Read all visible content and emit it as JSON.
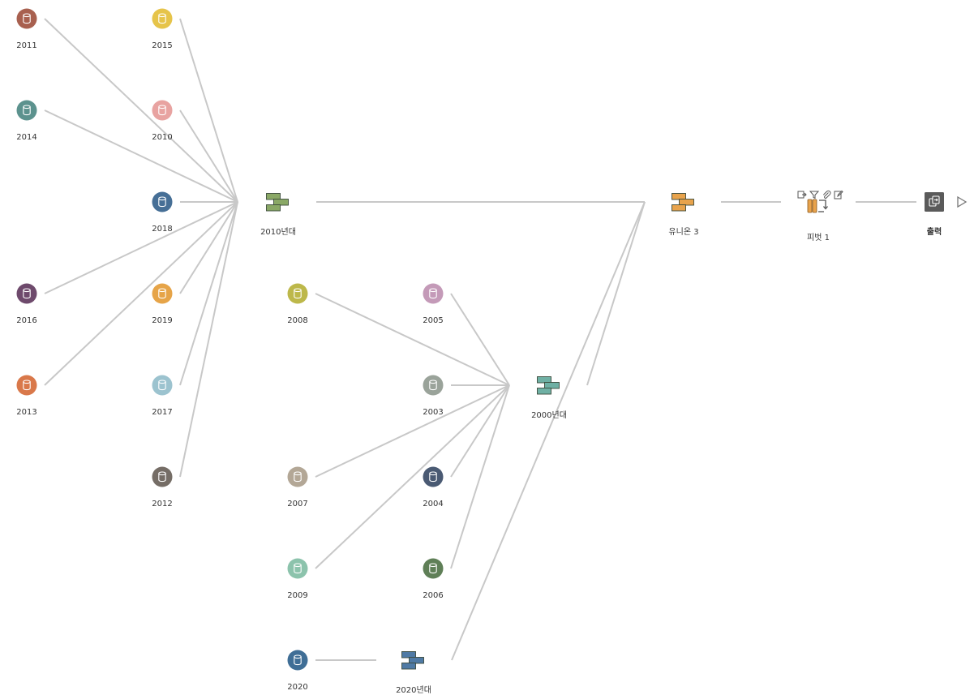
{
  "colors": {
    "edge": "#c8c8c8",
    "union_2010s": "#8aa866",
    "union_2000s": "#6fb0a4",
    "union_2020s": "#4f7aa5",
    "union_3": "#e8a34c",
    "pivot": "#e8a34c",
    "output": "#5a5a5a"
  },
  "flow": {
    "inputs": [
      {
        "id": "in-2011",
        "label": "2011",
        "color": "#a8604f"
      },
      {
        "id": "in-2015",
        "label": "2015",
        "color": "#e6c44a"
      },
      {
        "id": "in-2014",
        "label": "2014",
        "color": "#5c928e"
      },
      {
        "id": "in-2010",
        "label": "2010",
        "color": "#e8a3a1"
      },
      {
        "id": "in-2018",
        "label": "2018",
        "color": "#466f96"
      },
      {
        "id": "in-2016",
        "label": "2016",
        "color": "#6e4a6c"
      },
      {
        "id": "in-2019",
        "label": "2019",
        "color": "#e6a448"
      },
      {
        "id": "in-2013",
        "label": "2013",
        "color": "#d9784a"
      },
      {
        "id": "in-2017",
        "label": "2017",
        "color": "#9cc3cf"
      },
      {
        "id": "in-2012",
        "label": "2012",
        "color": "#756d66"
      },
      {
        "id": "in-2008",
        "label": "2008",
        "color": "#bdb84a"
      },
      {
        "id": "in-2005",
        "label": "2005",
        "color": "#c49ab8"
      },
      {
        "id": "in-2003",
        "label": "2003",
        "color": "#9aa39a"
      },
      {
        "id": "in-2007",
        "label": "2007",
        "color": "#b3a796"
      },
      {
        "id": "in-2004",
        "label": "2004",
        "color": "#4a5a73"
      },
      {
        "id": "in-2009",
        "label": "2009",
        "color": "#8cc3ac"
      },
      {
        "id": "in-2006",
        "label": "2006",
        "color": "#5f7f57"
      },
      {
        "id": "in-2020",
        "label": "2020",
        "color": "#3f6e96"
      }
    ],
    "unions": [
      {
        "id": "union-2010s",
        "label": "2010년대",
        "color": "#8aa866"
      },
      {
        "id": "union-2000s",
        "label": "2000년대",
        "color": "#6fb0a4"
      },
      {
        "id": "union-2020s",
        "label": "2020년대",
        "color": "#4f7aa5"
      },
      {
        "id": "union-3",
        "label": "유니온 3",
        "color": "#e8a34c"
      }
    ],
    "pivot": {
      "id": "pivot-1",
      "label": "피벗 1",
      "color": "#e8a34c",
      "tools": [
        "remove-field-icon",
        "filter-icon",
        "clip-icon",
        "edit-icon"
      ]
    },
    "output": {
      "id": "output-1",
      "label": "출력",
      "color": "#5a5a5a"
    },
    "edges": [
      [
        "in-2011",
        "union-2010s"
      ],
      [
        "in-2015",
        "union-2010s"
      ],
      [
        "in-2014",
        "union-2010s"
      ],
      [
        "in-2010",
        "union-2010s"
      ],
      [
        "in-2018",
        "union-2010s"
      ],
      [
        "in-2016",
        "union-2010s"
      ],
      [
        "in-2019",
        "union-2010s"
      ],
      [
        "in-2013",
        "union-2010s"
      ],
      [
        "in-2017",
        "union-2010s"
      ],
      [
        "in-2012",
        "union-2010s"
      ],
      [
        "in-2008",
        "union-2000s"
      ],
      [
        "in-2005",
        "union-2000s"
      ],
      [
        "in-2003",
        "union-2000s"
      ],
      [
        "in-2007",
        "union-2000s"
      ],
      [
        "in-2004",
        "union-2000s"
      ],
      [
        "in-2009",
        "union-2000s"
      ],
      [
        "in-2006",
        "union-2000s"
      ],
      [
        "in-2020",
        "union-2020s"
      ],
      [
        "union-2010s",
        "union-3"
      ],
      [
        "union-2000s",
        "union-3"
      ],
      [
        "union-2020s",
        "union-3"
      ],
      [
        "union-3",
        "pivot-1"
      ],
      [
        "pivot-1",
        "output-1"
      ]
    ]
  }
}
